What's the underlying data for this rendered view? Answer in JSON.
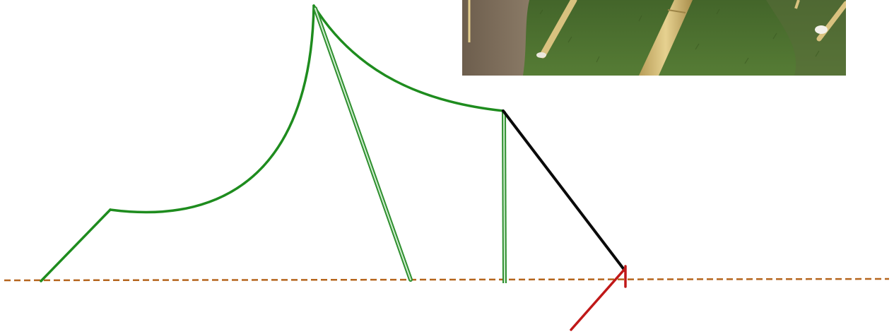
{
  "diagram": {
    "colors": {
      "canopy": "#1e8c1e",
      "pole_outer": "#2f8f2f",
      "pole_inner": "#cfeecf",
      "guy_line": "#0a0a0a",
      "stake": "#c01818",
      "ground": "#b5651d"
    },
    "elements": [
      "tent-canopy",
      "center-pole",
      "side-pole",
      "guy-rope",
      "ground-stake",
      "ground-line"
    ]
  },
  "photo": {
    "icon": "tent-stakes-photo",
    "colors": {
      "grass": "#4f7530",
      "dirt": "#7a6a58",
      "pole": "#d7be7a"
    }
  }
}
